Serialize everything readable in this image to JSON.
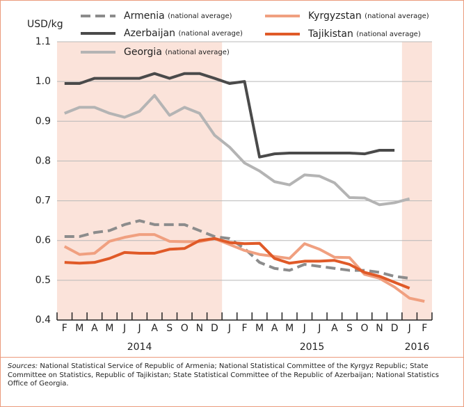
{
  "chart_data": {
    "type": "line",
    "y_label": "USD/kg",
    "categories": [
      "F",
      "M",
      "A",
      "M",
      "J",
      "J",
      "A",
      "S",
      "O",
      "N",
      "D",
      "J",
      "F",
      "M",
      "A",
      "M",
      "J",
      "J",
      "A",
      "S",
      "O",
      "N",
      "D",
      "J",
      "F"
    ],
    "years": [
      "2014",
      "2015",
      "2016"
    ],
    "ylim": [
      0.4,
      1.1
    ],
    "yticks": [
      0.4,
      0.5,
      0.6,
      0.7,
      0.8,
      0.9,
      {
        "value": 1,
        "label": "1.0"
      },
      1.1
    ],
    "grid": true,
    "shade_color": "#fbe3da",
    "series": [
      {
        "name": "Armenia",
        "note": "(national average)",
        "color": "#8c8c8c",
        "dashed": true,
        "values": [
          0.61,
          0.61,
          0.62,
          0.625,
          0.64,
          0.65,
          0.64,
          0.64,
          0.64,
          0.625,
          0.61,
          0.605,
          0.58,
          0.545,
          0.53,
          0.525,
          0.54,
          0.535,
          0.53,
          0.525,
          0.525,
          0.52,
          0.51,
          0.505,
          null
        ]
      },
      {
        "name": "Azerbaijan",
        "note": "(national average)",
        "color": "#4a4a4a",
        "dashed": false,
        "values": [
          0.995,
          0.995,
          1.008,
          1.008,
          1.008,
          1.008,
          1.02,
          1.008,
          1.02,
          1.02,
          1.008,
          0.995,
          1.0,
          0.81,
          0.818,
          0.82,
          0.82,
          0.82,
          0.82,
          0.82,
          0.818,
          0.827,
          0.827,
          null,
          null
        ]
      },
      {
        "name": "Georgia",
        "note": "(national average)",
        "color": "#b4b4b4",
        "dashed": false,
        "values": [
          0.92,
          0.935,
          0.935,
          0.92,
          0.91,
          0.925,
          0.965,
          0.915,
          0.935,
          0.92,
          0.865,
          0.835,
          0.795,
          0.775,
          0.748,
          0.74,
          0.765,
          0.762,
          0.745,
          0.708,
          0.707,
          0.69,
          0.695,
          0.705,
          null
        ]
      },
      {
        "name": "Kyrgyzstan",
        "note": "(national average)",
        "color": "#f0a080",
        "dashed": false,
        "values": [
          0.585,
          0.565,
          0.568,
          0.598,
          0.608,
          0.615,
          0.615,
          0.598,
          0.597,
          0.597,
          0.605,
          0.59,
          0.575,
          0.565,
          0.56,
          0.555,
          0.592,
          0.578,
          0.558,
          0.557,
          0.515,
          0.505,
          0.483,
          0.455,
          0.447
        ]
      },
      {
        "name": "Tajikistan",
        "note": "(national average)",
        "color": "#e05a28",
        "dashed": false,
        "values": [
          0.545,
          0.543,
          0.545,
          0.555,
          0.57,
          0.568,
          0.568,
          0.578,
          0.58,
          0.6,
          0.605,
          0.595,
          0.592,
          0.593,
          0.555,
          0.543,
          0.548,
          0.548,
          0.55,
          0.54,
          0.52,
          0.51,
          0.495,
          0.48,
          null
        ]
      }
    ],
    "source_label": "Sources:",
    "source": "National Statistical Service of Republic of Armenia; National Statistical Committee of the Kyrgyz Republic; State Committee on Statistics, Republic of Tajikistan; State Statistical Committee of the Republic of Azerbaijan; National Statistics Office of Georgia."
  }
}
